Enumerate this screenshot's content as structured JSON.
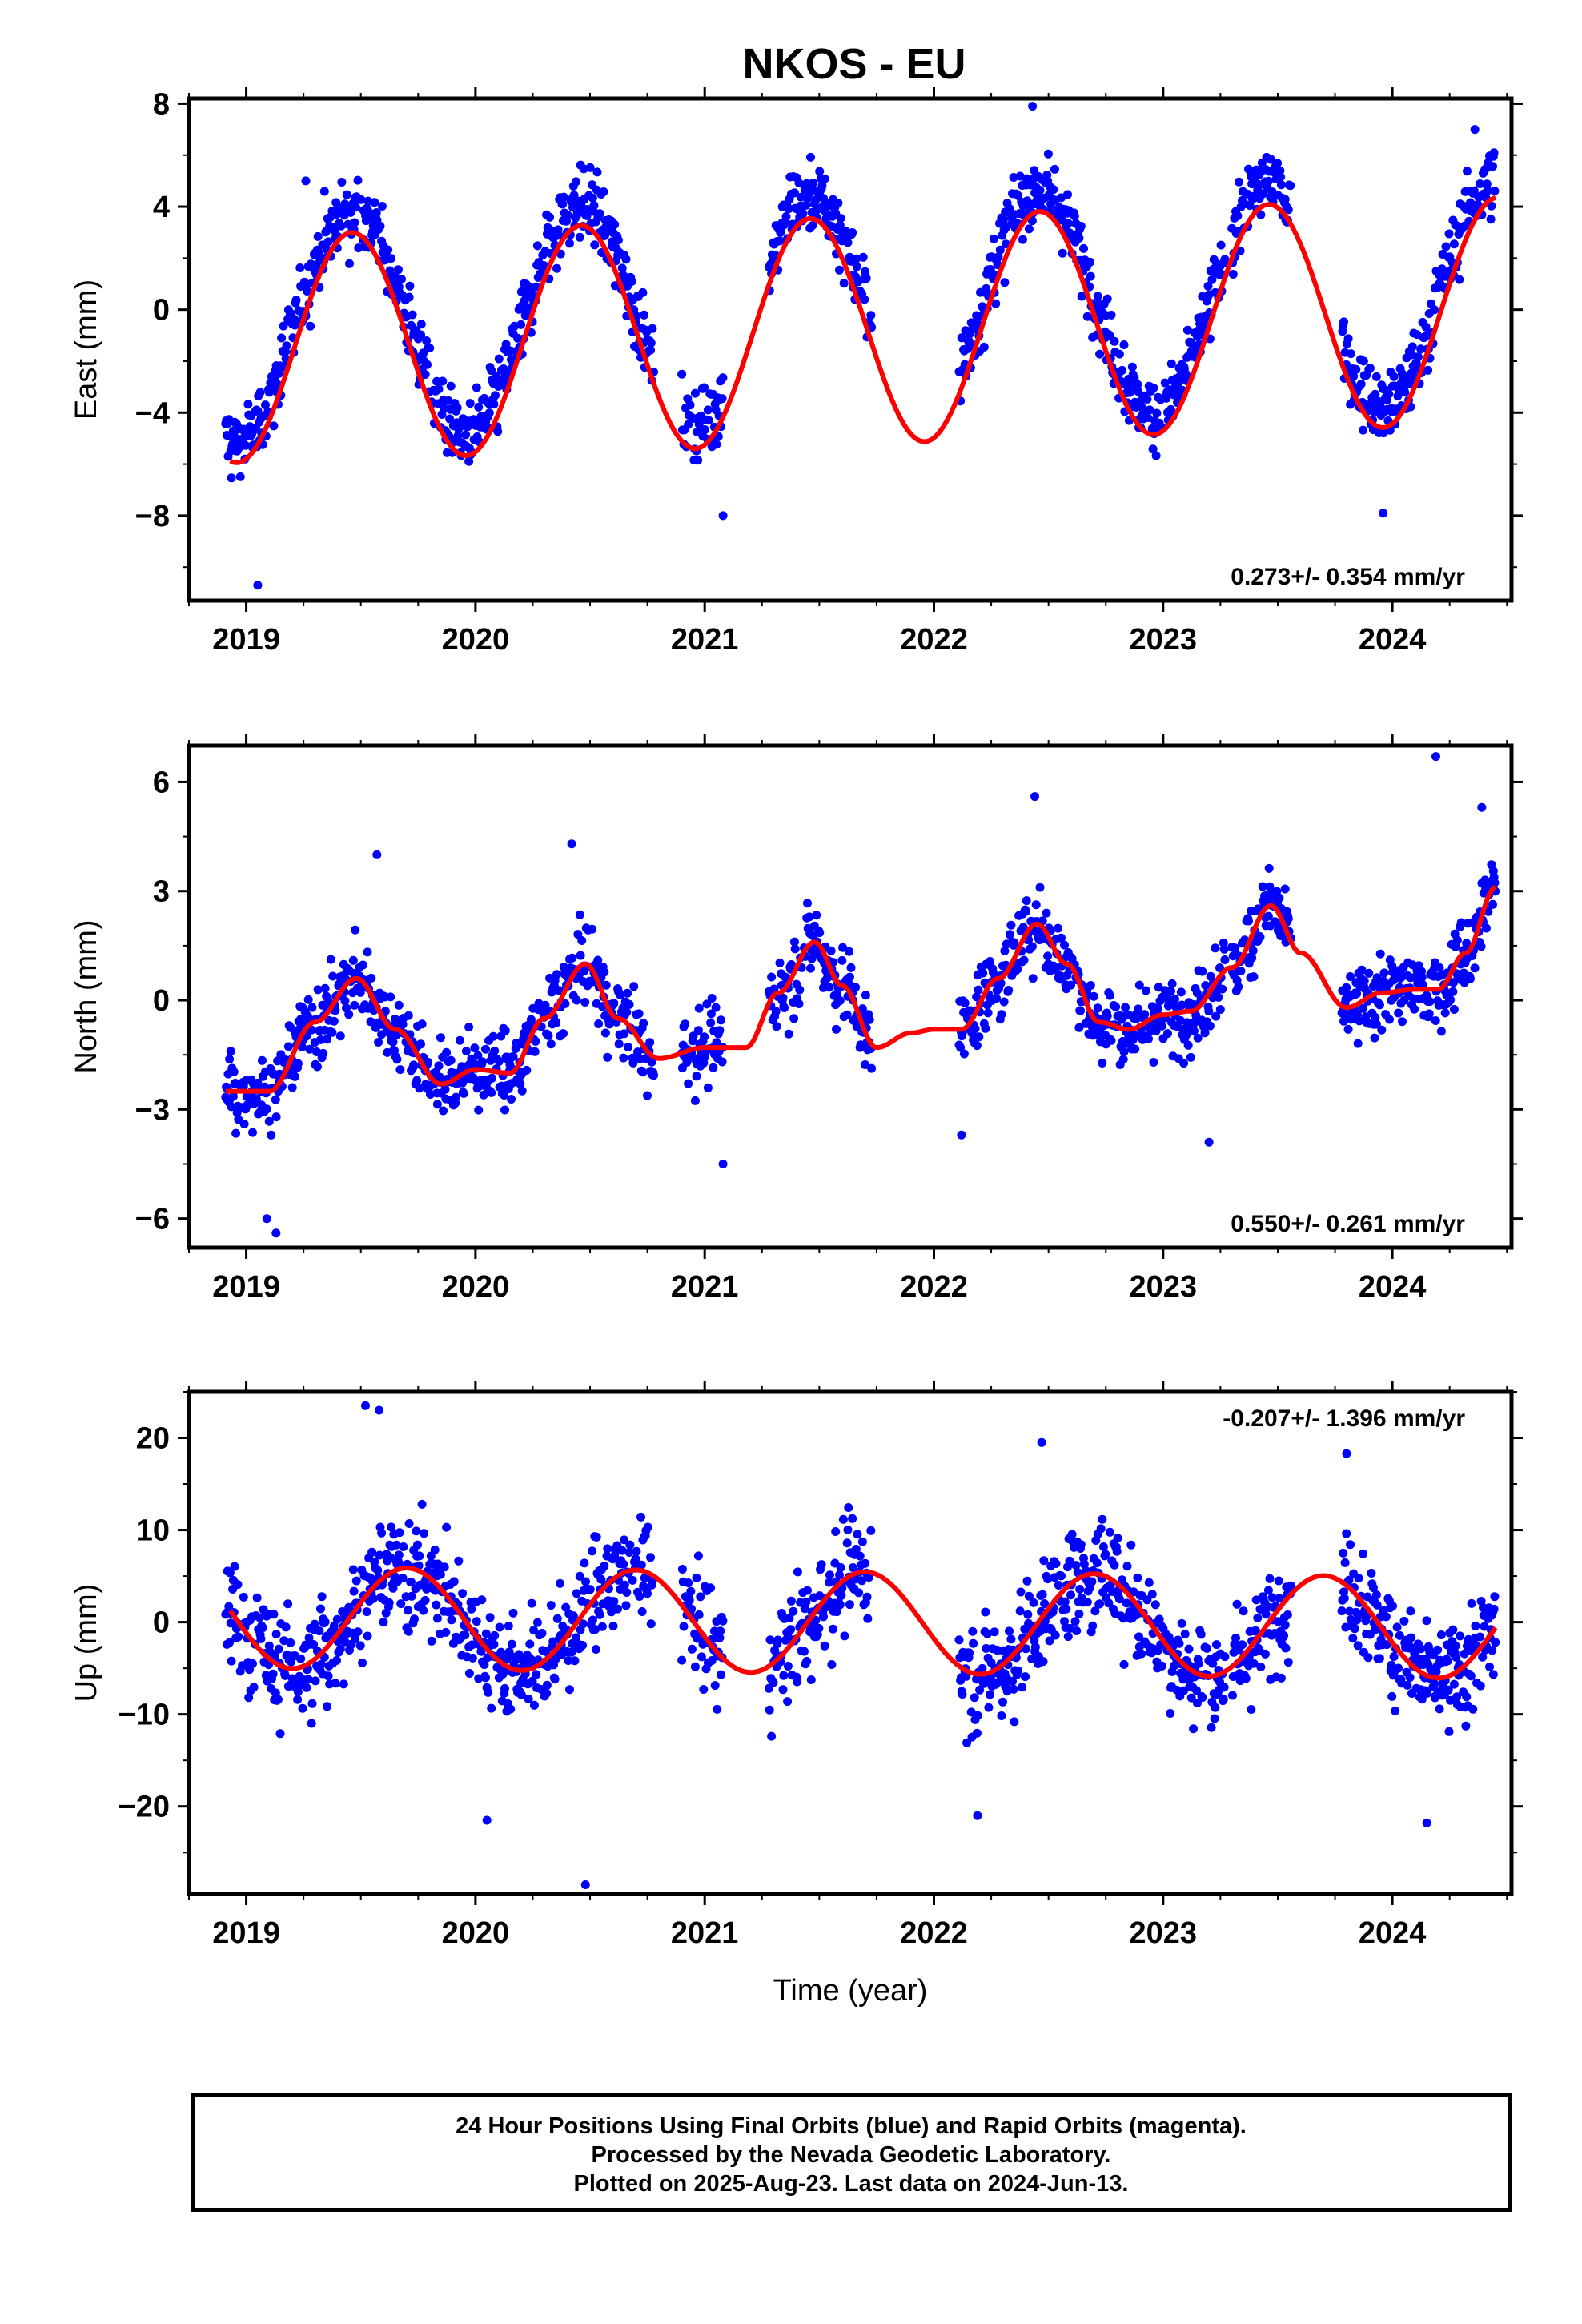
{
  "chart_data": [
    {
      "type": "scatter",
      "title": "NKOS - EU",
      "ylabel": "East (mm)",
      "xlabel": "",
      "ylim": [
        -11.3,
        8.2
      ],
      "xlim": [
        2018.75,
        2024.52
      ],
      "yticks": [
        8,
        4,
        0,
        -4,
        -8
      ],
      "xticks": [
        2019,
        2020,
        2021,
        2022,
        2023,
        2024
      ],
      "annotation": "0.273+/- 0.354 mm/yr",
      "annotation_position": "bottom-right",
      "colors": {
        "points": "#0000ff",
        "fit": "#ff0000"
      },
      "series": [
        {
          "kind": "points",
          "segments": [
            [
              2018.91,
              2020.78
            ],
            [
              2020.9,
              2021.08
            ],
            [
              2021.28,
              2021.73
            ],
            [
              2022.11,
              2023.27
            ],
            [
              2023.3,
              2023.56
            ],
            [
              2023.78,
              2024.45
            ]
          ],
          "annual_amplitude": 4.3,
          "annual_peak": 2019.46,
          "trend_mm_per_yr": 0.273,
          "scatter_mm": 1.2
        },
        {
          "kind": "fit",
          "annual_amplitude": 4.4,
          "annual_peak": 2019.46,
          "trend_mm_per_yr": 0.273,
          "points": [
            [
              2018.93,
              -6.2
            ],
            [
              2019.46,
              2.6
            ],
            [
              2019.98,
              -6.1
            ],
            [
              2020.46,
              2.9
            ],
            [
              2020.98,
              -5.8
            ],
            [
              2021.46,
              3.1
            ],
            [
              2021.97,
              -5.5
            ],
            [
              2022.46,
              3.4
            ],
            [
              2022.97,
              -5.3
            ],
            [
              2023.46,
              3.7
            ],
            [
              2023.97,
              -5.0
            ],
            [
              2024.45,
              3.9
            ]
          ]
        }
      ],
      "outliers": [
        [
          2019.05,
          -10.7
        ],
        [
          2019.26,
          5.0
        ],
        [
          2022.43,
          7.9
        ],
        [
          2024.36,
          7.0
        ],
        [
          2021.08,
          -8.0
        ],
        [
          2023.96,
          -7.9
        ]
      ]
    },
    {
      "type": "scatter",
      "title": "",
      "ylabel": "North (mm)",
      "xlabel": "",
      "ylim": [
        -6.8,
        7.0
      ],
      "xlim": [
        2018.75,
        2024.52
      ],
      "yticks": [
        6,
        3,
        0,
        -3,
        -6
      ],
      "xticks": [
        2019,
        2020,
        2021,
        2022,
        2023,
        2024
      ],
      "annotation": "0.550+/- 0.261 mm/yr",
      "annotation_position": "bottom-right",
      "colors": {
        "points": "#0000ff",
        "fit": "#ff0000"
      },
      "series": [
        {
          "kind": "points",
          "segments": [
            [
              2018.91,
              2020.78
            ],
            [
              2020.9,
              2021.08
            ],
            [
              2021.28,
              2021.73
            ],
            [
              2022.11,
              2023.27
            ],
            [
              2023.3,
              2023.56
            ],
            [
              2023.78,
              2024.45
            ]
          ],
          "annual_amplitude": 1.6,
          "annual_peak": 2019.48,
          "trend_mm_per_yr": 0.55,
          "scatter_mm": 0.9
        },
        {
          "kind": "fit",
          "points": [
            [
              2018.91,
              -2.5
            ],
            [
              2019.1,
              -2.5
            ],
            [
              2019.3,
              -0.6
            ],
            [
              2019.48,
              0.6
            ],
            [
              2019.65,
              -0.8
            ],
            [
              2019.85,
              -2.3
            ],
            [
              2020.0,
              -1.9
            ],
            [
              2020.15,
              -2.0
            ],
            [
              2020.3,
              -0.5
            ],
            [
              2020.48,
              1.0
            ],
            [
              2020.62,
              -0.5
            ],
            [
              2020.8,
              -1.6
            ],
            [
              2021.0,
              -1.3
            ],
            [
              2021.18,
              -1.3
            ],
            [
              2021.32,
              0.2
            ],
            [
              2021.48,
              1.6
            ],
            [
              2021.6,
              0.4
            ],
            [
              2021.75,
              -1.3
            ],
            [
              2021.9,
              -0.9
            ],
            [
              2022.0,
              -0.8
            ],
            [
              2022.12,
              -0.8
            ],
            [
              2022.28,
              0.6
            ],
            [
              2022.45,
              2.1
            ],
            [
              2022.58,
              1.0
            ],
            [
              2022.72,
              -0.6
            ],
            [
              2022.85,
              -0.8
            ],
            [
              2023.0,
              -0.4
            ],
            [
              2023.12,
              -0.3
            ],
            [
              2023.3,
              0.9
            ],
            [
              2023.47,
              2.6
            ],
            [
              2023.6,
              1.3
            ],
            [
              2023.8,
              -0.2
            ],
            [
              2023.95,
              0.2
            ],
            [
              2024.1,
              0.3
            ],
            [
              2024.2,
              0.3
            ],
            [
              2024.32,
              1.3
            ],
            [
              2024.45,
              3.1
            ]
          ]
        }
      ],
      "outliers": [
        [
          2019.13,
          -6.4
        ],
        [
          2019.09,
          -6.0
        ],
        [
          2022.44,
          5.6
        ],
        [
          2024.19,
          6.7
        ],
        [
          2024.39,
          5.3
        ],
        [
          2019.57,
          4.0
        ],
        [
          2020.42,
          4.3
        ],
        [
          2023.2,
          -3.9
        ],
        [
          2021.08,
          -4.5
        ],
        [
          2022.12,
          -3.7
        ]
      ]
    },
    {
      "type": "scatter",
      "title": "",
      "ylabel": "Up (mm)",
      "xlabel": "Time (year)",
      "ylim": [
        -29.5,
        25.0
      ],
      "xlim": [
        2018.75,
        2024.52
      ],
      "yticks": [
        20,
        10,
        0,
        -10,
        -20
      ],
      "xticks": [
        2019,
        2020,
        2021,
        2022,
        2023,
        2024
      ],
      "annotation": "-0.207+/- 1.396 mm/yr",
      "annotation_position": "top-right",
      "colors": {
        "points": "#0000ff",
        "fit": "#ff0000"
      },
      "series": [
        {
          "kind": "points",
          "segments": [
            [
              2018.91,
              2020.78
            ],
            [
              2020.9,
              2021.08
            ],
            [
              2021.28,
              2021.73
            ],
            [
              2022.11,
              2023.27
            ],
            [
              2023.3,
              2023.56
            ],
            [
              2023.78,
              2024.45
            ]
          ],
          "annual_amplitude": 5.5,
          "annual_peak": 2019.7,
          "trend_mm_per_yr": -0.207,
          "scatter_mm": 5.0
        },
        {
          "kind": "fit",
          "annual_amplitude": 5.5,
          "annual_peak": 2019.7,
          "trend_mm_per_yr": -0.207,
          "points": [
            [
              2018.93,
              -1.2
            ],
            [
              2019.18,
              -4.5
            ],
            [
              2019.7,
              6.5
            ],
            [
              2020.2,
              -4.7
            ],
            [
              2020.7,
              6.3
            ],
            [
              2021.1,
              -4.9
            ],
            [
              2021.68,
              6.1
            ],
            [
              2022.12,
              -4.8
            ],
            [
              2022.67,
              5.9
            ],
            [
              2023.12,
              -5.1
            ],
            [
              2023.68,
              5.8
            ],
            [
              2024.12,
              -5.3
            ],
            [
              2024.45,
              -0.6
            ]
          ]
        }
      ],
      "outliers": [
        [
          2019.52,
          23.5
        ],
        [
          2019.58,
          23.0
        ],
        [
          2020.48,
          -28.5
        ],
        [
          2020.05,
          -21.5
        ],
        [
          2022.19,
          -21.0
        ],
        [
          2024.15,
          -21.8
        ],
        [
          2022.47,
          19.5
        ],
        [
          2023.8,
          18.3
        ]
      ]
    }
  ],
  "footer": {
    "line1": "24 Hour Positions Using Final Orbits (blue) and Rapid Orbits (magenta).",
    "line2": "Processed by the Nevada Geodetic Laboratory.",
    "line3": "Plotted on 2025-Aug-23. Last data on 2024-Jun-13."
  }
}
